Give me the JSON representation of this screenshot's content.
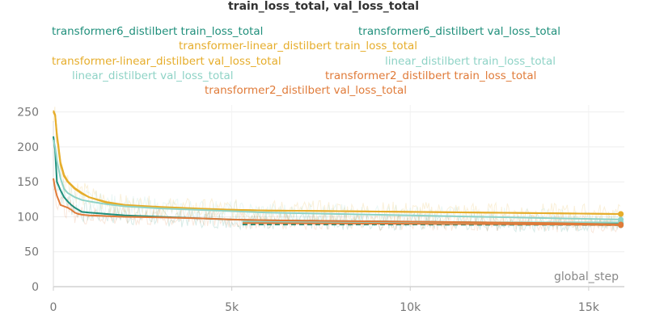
{
  "chart_data": {
    "type": "line",
    "title": "train_loss_total, val_loss_total",
    "xlabel": "global_step",
    "ylabel": "",
    "xlim": [
      0,
      16000
    ],
    "ylim": [
      0,
      260
    ],
    "x_ticks": [
      0,
      5000,
      10000,
      15000
    ],
    "x_tick_labels": [
      "0",
      "5k",
      "10k",
      "15k"
    ],
    "y_ticks": [
      0,
      50,
      100,
      150,
      200,
      250
    ],
    "y_tick_labels": [
      "0",
      "50",
      "100",
      "150",
      "200",
      "250"
    ],
    "grid": true,
    "legend_position": "top",
    "series": [
      {
        "name": "transformer6_distilbert train_loss_total",
        "color": "#1f8f7b",
        "style": "solid",
        "noisy": true,
        "x": [
          0,
          50,
          100,
          200,
          300,
          400,
          500,
          600,
          700,
          800,
          1000,
          1500,
          2000,
          3000,
          4000,
          5000,
          6000,
          8000,
          10000,
          12000,
          14000,
          15900
        ],
        "y": [
          215,
          195,
          150,
          138,
          128,
          122,
          117,
          113,
          110,
          107,
          106,
          104,
          102,
          100,
          98,
          96,
          95,
          94,
          93,
          92,
          91,
          90
        ]
      },
      {
        "name": "transformer6_distilbert val_loss_total",
        "color": "#1f8f7b",
        "style": "dashed",
        "noisy": false,
        "x": [
          5300,
          8000,
          10000,
          12000,
          14000,
          15900
        ],
        "y": [
          89,
          89,
          89,
          88.5,
          88.5,
          88
        ]
      },
      {
        "name": "transformer-linear_distilbert train_loss_total",
        "color": "#e6ad2b",
        "style": "solid",
        "noisy": true,
        "x": [
          0,
          50,
          100,
          200,
          300,
          400,
          600,
          800,
          1000,
          1500,
          2000,
          3000,
          4000,
          5000,
          6000,
          8000,
          10000,
          12000,
          14000,
          15900
        ],
        "y": [
          250,
          245,
          215,
          175,
          158,
          150,
          140,
          133,
          128,
          120,
          116,
          113,
          111,
          110,
          109,
          108,
          107,
          106,
          105,
          104
        ]
      },
      {
        "name": "transformer-linear_distilbert val_loss_total",
        "color": "#e6ad2b",
        "style": "solid",
        "noisy": false,
        "x": [
          0,
          50,
          100,
          200,
          300,
          400,
          600,
          800,
          1000,
          1500,
          2000,
          3000,
          4000,
          5000,
          6000,
          8000,
          10000,
          12000,
          14000,
          15900
        ],
        "y": [
          252,
          246,
          218,
          178,
          160,
          151,
          141,
          134,
          128,
          121,
          117,
          114,
          112,
          110,
          109,
          108,
          107,
          106,
          105,
          104
        ]
      },
      {
        "name": "linear_distilbert train_loss_total",
        "color": "#8fd3c6",
        "style": "solid",
        "noisy": true,
        "x": [
          0,
          50,
          100,
          200,
          300,
          400,
          600,
          800,
          1000,
          1500,
          2000,
          3000,
          4000,
          5000,
          6000,
          8000,
          10000,
          12000,
          14000,
          15900
        ],
        "y": [
          210,
          200,
          180,
          155,
          140,
          134,
          128,
          124,
          122,
          118,
          115,
          112,
          110,
          108,
          106,
          104,
          102,
          100,
          98,
          96
        ]
      },
      {
        "name": "linear_distilbert val_loss_total",
        "color": "#8fd3c6",
        "style": "solid",
        "noisy": false,
        "x": [
          5300,
          8000,
          10000,
          12000,
          14000,
          15900
        ],
        "y": [
          93,
          92.5,
          92,
          92,
          92,
          92
        ]
      },
      {
        "name": "transformer2_distilbert train_loss_total",
        "color": "#e07b39",
        "style": "solid",
        "noisy": true,
        "x": [
          0,
          50,
          100,
          200,
          300,
          400,
          500,
          600,
          700,
          800,
          1000,
          1500,
          2000,
          3000,
          4000,
          5000,
          6000,
          8000,
          10000,
          12000,
          14000,
          15900
        ],
        "y": [
          155,
          140,
          130,
          117,
          115,
          113,
          110,
          106,
          104,
          103,
          102,
          101,
          100,
          99,
          98,
          96,
          95,
          94,
          93,
          92,
          91,
          89
        ]
      },
      {
        "name": "transformer2_distilbert val_loss_total",
        "color": "#e07b39",
        "style": "solid",
        "noisy": false,
        "x": [
          5300,
          8000,
          10000,
          12000,
          14000,
          15900
        ],
        "y": [
          91,
          90.5,
          90,
          89.5,
          89,
          88
        ]
      }
    ]
  }
}
